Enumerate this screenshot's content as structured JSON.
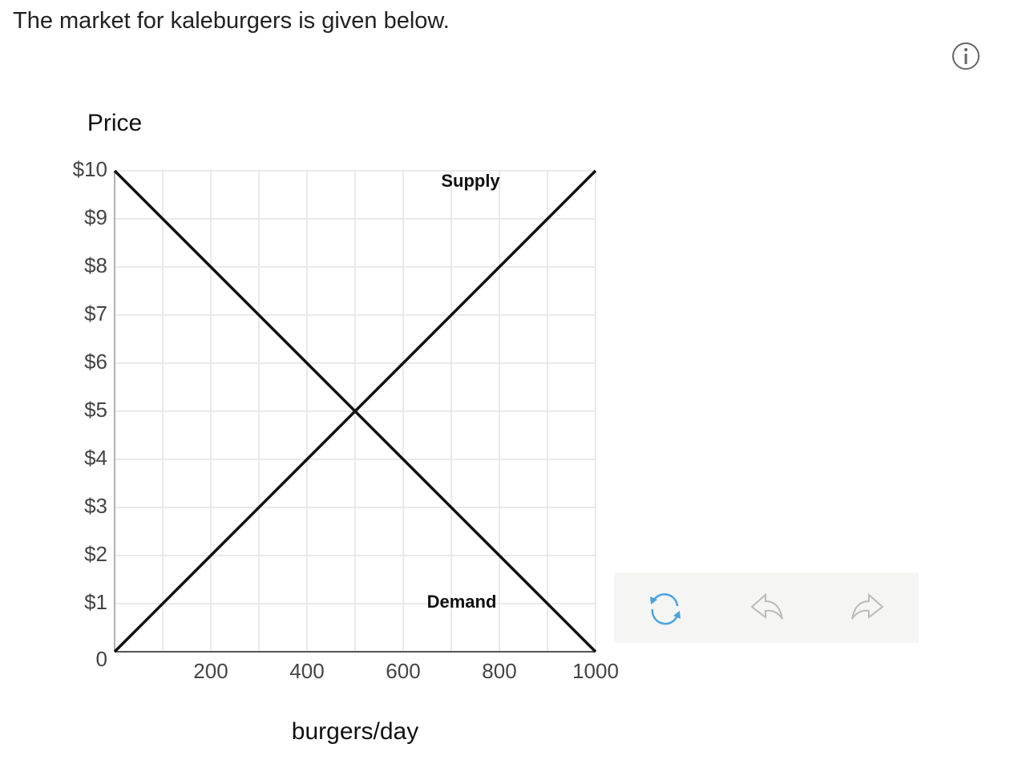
{
  "header": {
    "title": "The market for kaleburgers is given below."
  },
  "chart_data": {
    "type": "line",
    "ylabel": "Price",
    "xlabel": "burgers/day",
    "x": [
      0,
      1000
    ],
    "series": [
      {
        "name": "Supply",
        "color": "#111111",
        "values": [
          0,
          10
        ]
      },
      {
        "name": "Demand",
        "color": "#111111",
        "values": [
          10,
          0
        ]
      }
    ],
    "xlim": [
      0,
      1000
    ],
    "ylim": [
      0,
      10
    ],
    "xticks": [
      200,
      400,
      600,
      800,
      1000
    ],
    "minor_xticks": [
      100,
      300,
      500,
      700,
      900
    ],
    "yticks": [
      0,
      {
        "value": 1,
        "label": "$1"
      },
      {
        "value": 2,
        "label": "$2"
      },
      {
        "value": 3,
        "label": "$3"
      },
      {
        "value": 4,
        "label": "$4"
      },
      {
        "value": 5,
        "label": "$5"
      },
      {
        "value": 6,
        "label": "$6"
      },
      {
        "value": 7,
        "label": "$7"
      },
      {
        "value": 8,
        "label": "$8"
      },
      {
        "value": 9,
        "label": "$9"
      },
      {
        "value": 10,
        "label": "$10"
      }
    ],
    "grid": true
  }
}
